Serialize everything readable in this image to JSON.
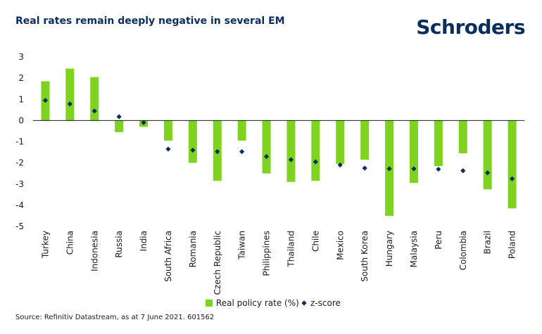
{
  "header": {
    "title": "Real rates remain deeply negative in several EM",
    "logo_text": "Schroders"
  },
  "footer": {
    "source": "Source: Refinitiv Datastream, as at 7 June 2021. 601562"
  },
  "colors": {
    "bar": "#7ed321",
    "marker": "#0b2d5c",
    "title": "#0b2d5c"
  },
  "chart_data": {
    "type": "bar",
    "title": "Real rates remain deeply negative in several EM",
    "categories": [
      "Turkey",
      "China",
      "Indonesia",
      "Russia",
      "India",
      "South Africa",
      "Romania",
      "Czech Republic",
      "Taiwan",
      "Philippines",
      "Thailand",
      "Chile",
      "Mexico",
      "South Korea",
      "Hungary",
      "Malaysia",
      "Peru",
      "Colombia",
      "Brazil",
      "Poland"
    ],
    "series": [
      {
        "name": "Real policy rate (%)",
        "kind": "bar",
        "values": [
          1.85,
          2.45,
          2.05,
          -0.55,
          -0.3,
          -0.95,
          -2.0,
          -2.85,
          -0.95,
          -2.5,
          -2.9,
          -2.85,
          -2.05,
          -1.85,
          -4.5,
          -2.95,
          -2.15,
          -1.55,
          -3.25,
          -4.15
        ]
      },
      {
        "name": "z-score",
        "kind": "marker",
        "values": [
          0.95,
          0.78,
          0.45,
          0.18,
          -0.1,
          -1.35,
          -1.4,
          -1.47,
          -1.47,
          -1.7,
          -1.85,
          -1.95,
          -2.1,
          -2.25,
          -2.28,
          -2.28,
          -2.3,
          -2.37,
          -2.47,
          -2.75
        ]
      }
    ],
    "ylim": [
      -5,
      3
    ],
    "yticks": [
      3,
      2,
      1,
      0,
      -1,
      -2,
      -3,
      -4,
      -5
    ],
    "legend_position": "bottom-center",
    "grid": false
  }
}
